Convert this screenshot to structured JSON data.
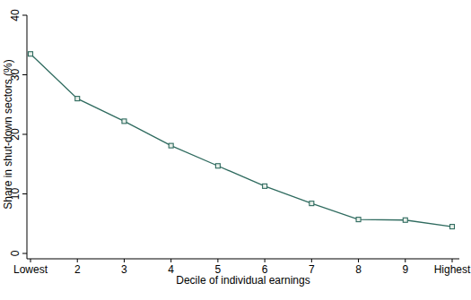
{
  "chart_data": {
    "type": "line",
    "x_label": "Decile of individual earnings",
    "y_label": "Share in shut-down sectors (%)",
    "categories": [
      "Lowest",
      "2",
      "3",
      "4",
      "5",
      "6",
      "7",
      "8",
      "9",
      "Highest"
    ],
    "values": [
      33.5,
      26,
      22.2,
      18.1,
      14.7,
      11.3,
      8.4,
      5.7,
      5.6,
      4.5
    ],
    "color": "#2f6b5f",
    "marker": "square",
    "ylim": [
      0,
      40
    ],
    "yticks": [
      0,
      10,
      20,
      30,
      40
    ],
    "grid": false
  }
}
